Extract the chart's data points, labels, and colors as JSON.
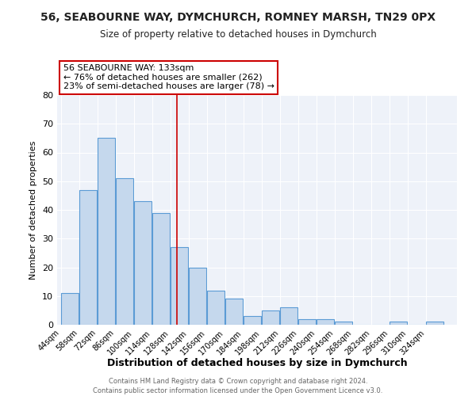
{
  "title": "56, SEABOURNE WAY, DYMCHURCH, ROMNEY MARSH, TN29 0PX",
  "subtitle": "Size of property relative to detached houses in Dymchurch",
  "xlabel": "Distribution of detached houses by size in Dymchurch",
  "ylabel": "Number of detached properties",
  "bin_labels": [
    "44sqm",
    "58sqm",
    "72sqm",
    "86sqm",
    "100sqm",
    "114sqm",
    "128sqm",
    "142sqm",
    "156sqm",
    "170sqm",
    "184sqm",
    "198sqm",
    "212sqm",
    "226sqm",
    "240sqm",
    "254sqm",
    "268sqm",
    "282sqm",
    "296sqm",
    "310sqm",
    "324sqm"
  ],
  "bin_edges": [
    44,
    58,
    72,
    86,
    100,
    114,
    128,
    142,
    156,
    170,
    184,
    198,
    212,
    226,
    240,
    254,
    268,
    282,
    296,
    310,
    324,
    338
  ],
  "bar_heights": [
    11,
    47,
    65,
    51,
    43,
    39,
    27,
    20,
    12,
    9,
    3,
    5,
    6,
    2,
    2,
    1,
    0,
    0,
    1,
    0,
    1
  ],
  "bar_color": "#c5d8ed",
  "bar_edge_color": "#5b9bd5",
  "property_line_x": 133,
  "property_line_color": "#cc0000",
  "annotation_line1": "56 SEABOURNE WAY: 133sqm",
  "annotation_line2": "← 76% of detached houses are smaller (262)",
  "annotation_line3": "23% of semi-detached houses are larger (78) →",
  "annotation_box_edge": "#cc0000",
  "ylim": [
    0,
    80
  ],
  "yticks": [
    0,
    10,
    20,
    30,
    40,
    50,
    60,
    70,
    80
  ],
  "bg_color": "#eef2f9",
  "plot_bg_color": "#eef2f9",
  "grid_color": "#ffffff",
  "footer1": "Contains HM Land Registry data © Crown copyright and database right 2024.",
  "footer2": "Contains public sector information licensed under the Open Government Licence v3.0."
}
